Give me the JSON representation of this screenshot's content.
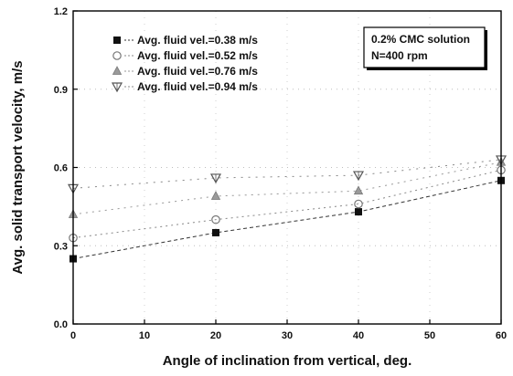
{
  "chart_data": {
    "type": "scatter",
    "xlabel": "Angle of inclination from vertical, deg.",
    "ylabel": "Avg. solid transport velocity, m/s",
    "xlim": [
      0,
      60
    ],
    "ylim": [
      0.0,
      1.2
    ],
    "xticks": [
      "0",
      "10",
      "20",
      "30",
      "40",
      "50",
      "60"
    ],
    "yticks": [
      "0.0",
      "0.3",
      "0.6",
      "0.9",
      "1.2"
    ],
    "grid": true,
    "legend_position": "top-left",
    "annotation": [
      "0.2% CMC solution",
      "N=400 rpm"
    ],
    "series": [
      {
        "name": "Avg. fluid vel.=0.38 m/s",
        "marker": "filled-square",
        "x": [
          0,
          20,
          40,
          60
        ],
        "y": [
          0.25,
          0.35,
          0.43,
          0.55
        ]
      },
      {
        "name": "Avg. fluid vel.=0.52 m/s",
        "marker": "open-circle",
        "x": [
          0,
          20,
          40,
          60
        ],
        "y": [
          0.33,
          0.4,
          0.46,
          0.59
        ]
      },
      {
        "name": "Avg. fluid vel.=0.76 m/s",
        "marker": "triangle-up",
        "x": [
          0,
          20,
          40,
          60
        ],
        "y": [
          0.42,
          0.49,
          0.51,
          0.62
        ]
      },
      {
        "name": "Avg. fluid vel.=0.94 m/s",
        "marker": "triangle-down",
        "x": [
          0,
          20,
          40,
          60
        ],
        "y": [
          0.52,
          0.56,
          0.57,
          0.63
        ]
      }
    ]
  }
}
